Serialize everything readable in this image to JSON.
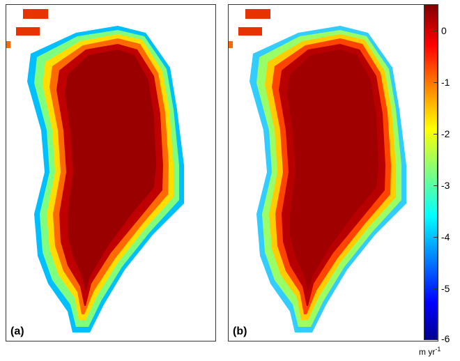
{
  "chart_data": [
    {
      "type": "heatmap",
      "panel_label": "(a)",
      "description_colormap": "jet",
      "value_range": [
        -6,
        0.5
      ],
      "interior_value": 0.3,
      "margin_gradient": "decreasing toward coastline; yellow-green margins in north/east, cyan-blue in southwest"
    },
    {
      "type": "heatmap",
      "panel_label": "(b)",
      "description_colormap": "jet",
      "value_range": [
        -6,
        0.5
      ],
      "interior_value": 0.3,
      "margin_gradient": "smoother decrease toward coastline; cyan margins in southwest"
    }
  ],
  "colorbar": {
    "ticks": [
      "0",
      "-1",
      "-2",
      "-3",
      "-4",
      "-5",
      "-6"
    ],
    "unit_main": "m yr",
    "unit_sup": "-1",
    "colors": [
      "#00008f",
      "#0000ff",
      "#007fff",
      "#00ffff",
      "#7fff7f",
      "#ffff00",
      "#ff7f00",
      "#ff0000",
      "#800000"
    ]
  }
}
